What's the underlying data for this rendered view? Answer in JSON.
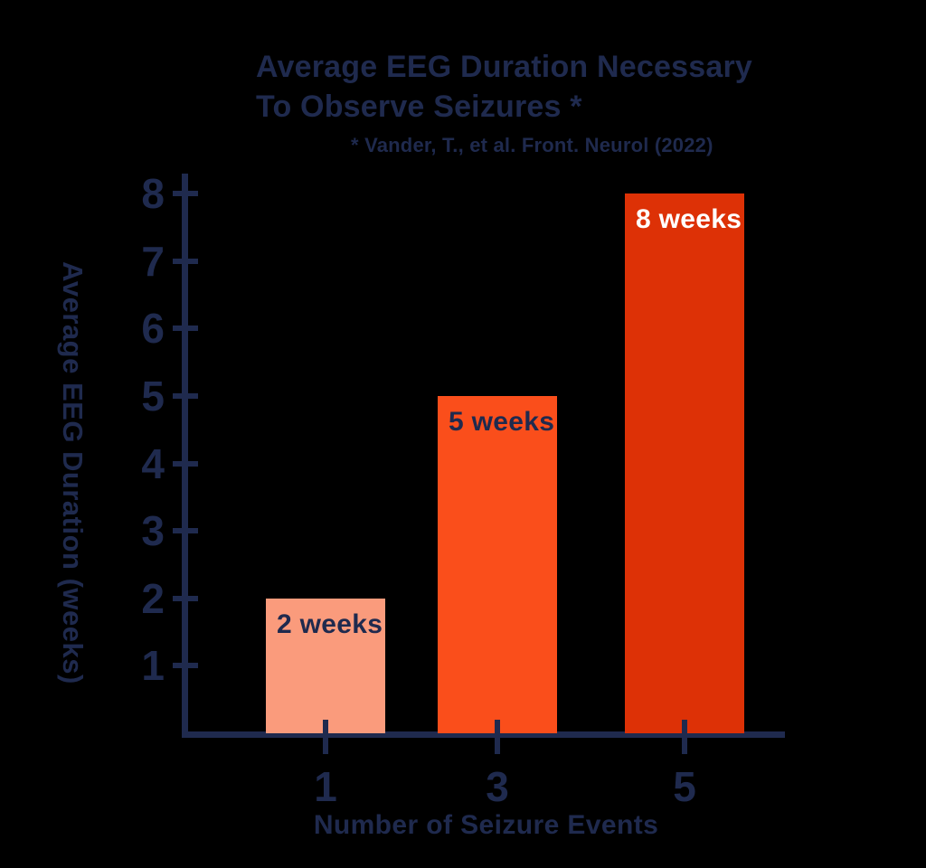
{
  "page": {
    "background": "#000000"
  },
  "header": {
    "title_line1": "Average EEG Duration Necessary",
    "title_line2": "To Observe Seizures *",
    "subtitle": "* Vander, T., et al. Front. Neurol (2022)"
  },
  "chart_data": {
    "type": "bar",
    "title": "Average EEG Duration Necessary To Observe Seizures *",
    "subtitle": "* Vander, T., et al. Front. Neurol (2022)",
    "xlabel": "Number of Seizure Events",
    "ylabel": "Average EEG Duration (weeks)",
    "categories": [
      "1",
      "3",
      "5"
    ],
    "values": [
      2,
      5,
      8
    ],
    "bars": [
      {
        "category": "1",
        "value": 2,
        "label": "2 weeks",
        "color": "#FA9B7C",
        "label_color": "#1F2A4E"
      },
      {
        "category": "3",
        "value": 5,
        "label": "5 weeks",
        "color": "#FA4E1B",
        "label_color": "#1F2A4E"
      },
      {
        "category": "5",
        "value": 8,
        "label": "8 weeks",
        "color": "#DD3106",
        "label_color": "#FFFFFF"
      }
    ],
    "y_ticks": [
      1,
      2,
      3,
      4,
      5,
      6,
      7,
      8
    ],
    "ylim": [
      0,
      8
    ],
    "grid": false,
    "legend": false,
    "axis_color": "#1F2A4E",
    "text_color": "#1F2A4E"
  }
}
